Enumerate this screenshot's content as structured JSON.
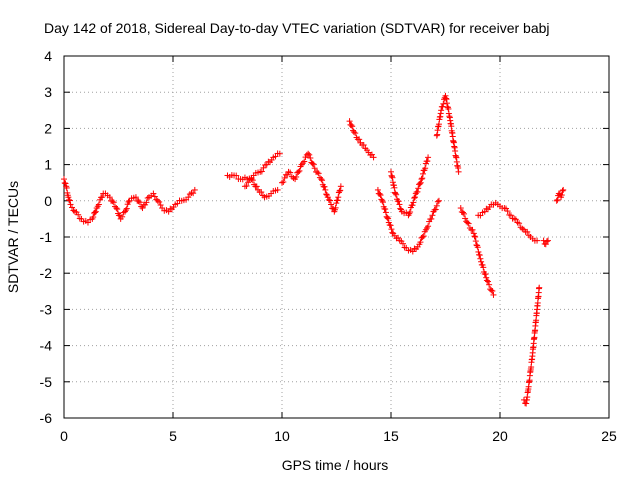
{
  "chart_data": {
    "type": "scatter",
    "title": "Day 142 of 2018, Sidereal Day-to-day VTEC variation (SDTVAR) for receiver babj",
    "xlabel": "GPS time / hours",
    "ylabel": "SDTVAR / TECUs",
    "xlim": [
      0,
      25
    ],
    "ylim": [
      -6,
      4
    ],
    "xticks": [
      "0",
      "5",
      "10",
      "15",
      "20",
      "25"
    ],
    "yticks": [
      "4",
      "3",
      "2",
      "1",
      "0",
      "-1",
      "-2",
      "-3",
      "-4",
      "-5",
      "-6"
    ],
    "grid": true,
    "marker": "+",
    "color": "#ff0000",
    "series": [
      {
        "name": "SDTVAR",
        "segments": [
          {
            "x": [
              0.0,
              0.1,
              0.2,
              0.3,
              0.5,
              0.8,
              1.1,
              1.3,
              1.5,
              1.8,
              2.1,
              2.4,
              2.6,
              2.8,
              3.0,
              3.3,
              3.6,
              3.9,
              4.1,
              4.3,
              4.5,
              4.8,
              5.1,
              5.4,
              5.7,
              6.0
            ],
            "y": [
              0.6,
              0.4,
              0.1,
              -0.1,
              -0.3,
              -0.5,
              -0.6,
              -0.5,
              -0.2,
              0.2,
              0.1,
              -0.2,
              -0.5,
              -0.3,
              0.0,
              0.1,
              -0.2,
              0.1,
              0.2,
              0.0,
              -0.2,
              -0.3,
              -0.1,
              0.0,
              0.1,
              0.3
            ]
          },
          {
            "x": [
              7.5,
              7.8,
              8.1,
              8.4,
              8.7,
              9.0,
              9.3,
              9.6,
              9.9
            ],
            "y": [
              0.7,
              0.7,
              0.6,
              0.6,
              0.7,
              0.8,
              1.0,
              1.2,
              1.3
            ]
          },
          {
            "x": [
              8.3,
              8.6,
              8.9,
              9.2,
              9.5,
              9.8
            ],
            "y": [
              0.4,
              0.6,
              0.3,
              0.1,
              0.2,
              0.3
            ]
          },
          {
            "x": [
              10.0,
              10.3,
              10.6,
              10.9,
              11.2,
              11.5,
              11.8,
              12.1,
              12.4,
              12.7
            ],
            "y": [
              0.5,
              0.8,
              0.6,
              1.0,
              1.3,
              0.9,
              0.6,
              0.1,
              -0.3,
              0.4
            ]
          },
          {
            "x": [
              13.1,
              13.3,
              13.6,
              13.9,
              14.2
            ],
            "y": [
              2.2,
              1.9,
              1.6,
              1.4,
              1.2
            ]
          },
          {
            "x": [
              14.4,
              14.6,
              14.9,
              15.1,
              15.4,
              15.7,
              16.0,
              16.3,
              16.6,
              16.9,
              17.2
            ],
            "y": [
              0.3,
              0.0,
              -0.6,
              -0.9,
              -1.1,
              -1.3,
              -1.4,
              -1.2,
              -0.8,
              -0.4,
              0.0
            ]
          },
          {
            "x": [
              15.0,
              15.2,
              15.5,
              15.8,
              16.1,
              16.4,
              16.7
            ],
            "y": [
              0.8,
              0.2,
              -0.3,
              -0.4,
              0.1,
              0.6,
              1.2
            ]
          },
          {
            "x": [
              17.1,
              17.3,
              17.5,
              17.7,
              17.9,
              18.1
            ],
            "y": [
              1.8,
              2.5,
              2.9,
              2.3,
              1.5,
              0.8
            ]
          },
          {
            "x": [
              18.2,
              18.5,
              18.8,
              19.1,
              19.4,
              19.7
            ],
            "y": [
              -0.2,
              -0.6,
              -0.9,
              -1.6,
              -2.2,
              -2.6
            ]
          },
          {
            "x": [
              19.0,
              19.3,
              19.6,
              19.9,
              20.2,
              20.5,
              20.8,
              21.1,
              21.4,
              21.7
            ],
            "y": [
              -0.4,
              -0.3,
              -0.1,
              -0.1,
              -0.2,
              -0.4,
              -0.6,
              -0.8,
              -1.0,
              -1.1
            ]
          },
          {
            "x": [
              21.1,
              21.2,
              21.3,
              21.4,
              21.5,
              21.6,
              21.7,
              21.8
            ],
            "y": [
              -5.5,
              -5.6,
              -5.2,
              -4.7,
              -4.2,
              -3.6,
              -3.0,
              -2.4
            ]
          },
          {
            "x": [
              22.0,
              22.1,
              22.2
            ],
            "y": [
              -1.1,
              -1.2,
              -1.1
            ]
          },
          {
            "x": [
              22.6,
              22.7,
              22.8,
              22.9
            ],
            "y": [
              0.0,
              0.2,
              0.1,
              0.3
            ]
          }
        ]
      }
    ]
  }
}
